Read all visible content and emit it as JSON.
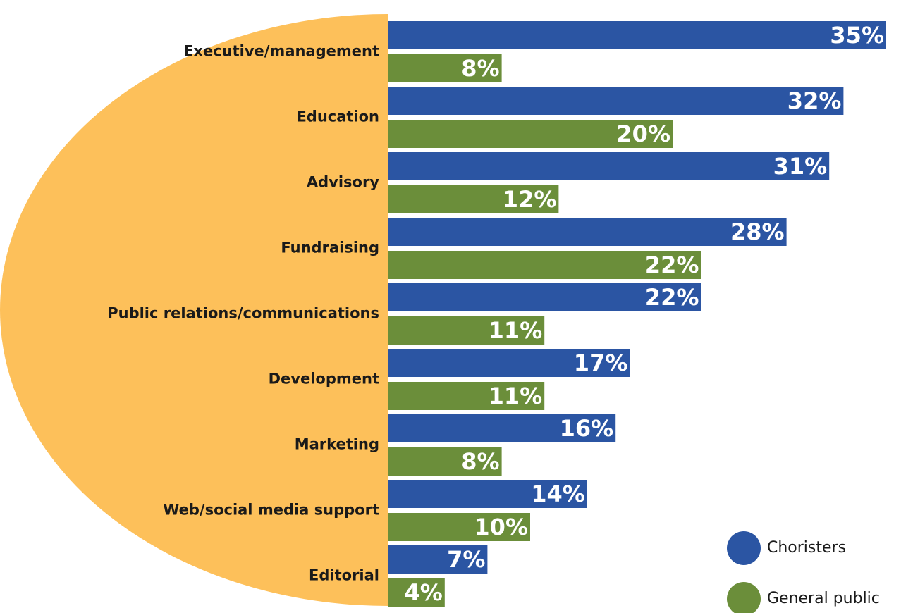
{
  "chart_data": {
    "type": "bar",
    "orientation": "horizontal",
    "categories": [
      "Executive/management",
      "Education",
      "Advisory",
      "Fundraising",
      "Public relations/communications",
      "Development",
      "Marketing",
      "Web/social media support",
      "Editorial"
    ],
    "series": [
      {
        "name": "Choristers",
        "color": "#2b55a3",
        "values": [
          35,
          32,
          31,
          28,
          22,
          17,
          16,
          14,
          7
        ],
        "value_labels": [
          "35%",
          "32%",
          "31%",
          "28%",
          "22%",
          "17%",
          "16%",
          "14%",
          "7%"
        ]
      },
      {
        "name": "General public",
        "color": "#6b8e3a",
        "values": [
          8,
          20,
          12,
          22,
          11,
          11,
          8,
          10,
          4
        ],
        "value_labels": [
          "8%",
          "20%",
          "12%",
          "22%",
          "11%",
          "11%",
          "8%",
          "10%",
          "4%"
        ]
      }
    ],
    "background_color": "#fdc05a"
  }
}
